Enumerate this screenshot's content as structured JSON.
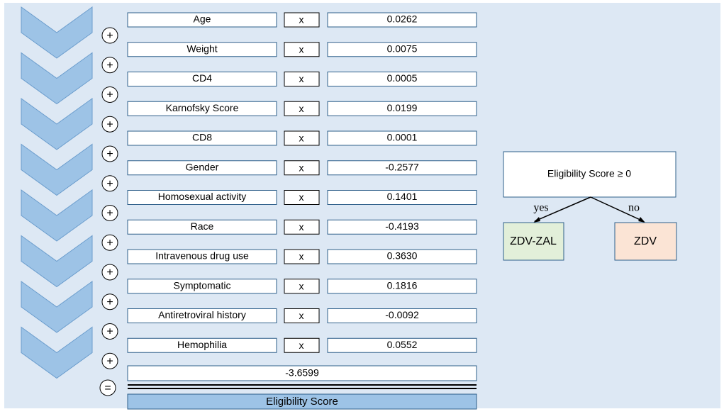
{
  "rows": [
    {
      "label": "Age",
      "coefficient": "0.0262"
    },
    {
      "label": "Weight",
      "coefficient": "0.0075"
    },
    {
      "label": "CD4",
      "coefficient": "0.0005"
    },
    {
      "label": "Karnofsky Score",
      "coefficient": "0.0199"
    },
    {
      "label": "CD8",
      "coefficient": "0.0001"
    },
    {
      "label": "Gender",
      "coefficient": "-0.2577"
    },
    {
      "label": "Homosexual activity",
      "coefficient": "0.1401"
    },
    {
      "label": "Race",
      "coefficient": "-0.4193"
    },
    {
      "label": "Intravenous drug use",
      "coefficient": "0.3630"
    },
    {
      "label": "Symptomatic",
      "coefficient": "0.1816"
    },
    {
      "label": "Antiretroviral history",
      "coefficient": "-0.0092"
    },
    {
      "label": "Hemophilia",
      "coefficient": "0.0552"
    }
  ],
  "multiply_symbol": "x",
  "plus_symbol": "+",
  "equals_symbol": "=",
  "intercept": "-3.6599",
  "result_label": "Eligibility Score",
  "decision": {
    "condition": "Eligibility Score ≥ 0",
    "yes_label": "yes",
    "no_label": "no",
    "yes_outcome": "ZDV-ZAL",
    "no_outcome": "ZDV"
  }
}
